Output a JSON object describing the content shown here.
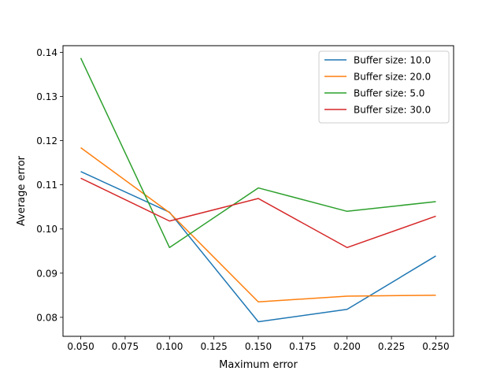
{
  "chart_data": {
    "type": "line",
    "title": "",
    "xlabel": "Maximum error",
    "ylabel": "Average error",
    "xlim": [
      0.04,
      0.26
    ],
    "ylim": [
      0.0757,
      0.1415
    ],
    "x": [
      0.05,
      0.1,
      0.15,
      0.2,
      0.25
    ],
    "xticks": [
      "0.050",
      "0.075",
      "0.100",
      "0.125",
      "0.150",
      "0.175",
      "0.200",
      "0.225",
      "0.250"
    ],
    "yticks": [
      "0.08",
      "0.09",
      "0.10",
      "0.11",
      "0.12",
      "0.13",
      "0.14"
    ],
    "grid": false,
    "legend_position": "top-right",
    "series": [
      {
        "name": "Buffer size: 10.0",
        "color": "#1f77b4",
        "values": [
          0.113,
          0.1038,
          0.079,
          0.0818,
          0.0939
        ]
      },
      {
        "name": "Buffer size: 20.0",
        "color": "#ff7f0e",
        "values": [
          0.1184,
          0.1037,
          0.0835,
          0.0848,
          0.085
        ]
      },
      {
        "name": "Buffer size: 5.0",
        "color": "#2ca02c",
        "values": [
          0.1387,
          0.0958,
          0.1093,
          0.104,
          0.1062
        ]
      },
      {
        "name": "Buffer size: 30.0",
        "color": "#d62728",
        "values": [
          0.1115,
          0.1018,
          0.1069,
          0.0958,
          0.1029
        ]
      }
    ]
  }
}
